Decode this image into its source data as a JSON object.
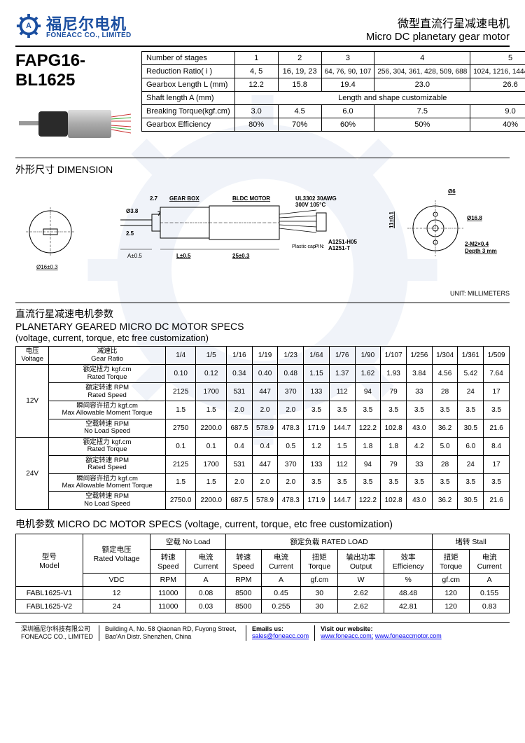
{
  "header": {
    "logo_cn": "福尼尔电机",
    "logo_en": "FONEACC CO., LIMITED",
    "title_cn": "微型直流行星减速电机",
    "title_en": "Micro DC planetary gear motor"
  },
  "model": "FAPG16-BL1625",
  "stages": {
    "headers": [
      "Number of stages",
      "Reduction Ratio( i )",
      "Gearbox Length L (mm)",
      "Shaft length A (mm)",
      "Breaking Torque(kgf.cm)",
      "Gearbox Efficiency"
    ],
    "cols": [
      "1",
      "2",
      "3",
      "4",
      "5"
    ],
    "rows": [
      [
        "4, 5",
        "16, 19, 23",
        "64, 76, 90, 107",
        "256, 304, 361, 428, 509, 688",
        "1024, 1216, 1444, 1715"
      ],
      [
        "12.2",
        "15.8",
        "19.4",
        "23.0",
        "26.6"
      ],
      [
        "Length and shape customizable"
      ],
      [
        "3.0",
        "4.5",
        "6.0",
        "7.5",
        "9.0"
      ],
      [
        "80%",
        "70%",
        "60%",
        "50%",
        "40%"
      ]
    ]
  },
  "dimension": {
    "title": "外形尺寸 DIMENSION",
    "labels": {
      "gearbox": "GEAR BOX",
      "bldc": "BLDC MOTOR",
      "wire": "UL3302 30AWG",
      "wire2": "300V 105°C",
      "pin1": "A1251-H05",
      "pin2": "A1251-T",
      "plastic": "Plastic cap",
      "d16": "Ø16±0.3",
      "a": "A±0.5",
      "l": "L±0.5",
      "l25": "25±0.3",
      "t27": "2.7",
      "t7": "7",
      "d38": "Ø3.8",
      "t258": "2.5",
      "d6": "Ø6",
      "d11": "11±0.1",
      "d168": "Ø16.8",
      "m2": "2-M2×0.4",
      "depth": "Depth 3 mm"
    },
    "unit": "UNIT: MILLIMETERS"
  },
  "planetary": {
    "title_cn": "直流行星减速电机参数",
    "title_en": "PLANETARY GEARED MICRO DC MOTOR SPECS",
    "sub": "(voltage, current, torque, etc free customization)",
    "voltage_h_cn": "电压",
    "voltage_h_en": "Voltage",
    "ratio_h_cn": "减速比",
    "ratio_h_en": "Gear Ratio",
    "ratios": [
      "1/4",
      "1/5",
      "1/16",
      "1/19",
      "1/23",
      "1/64",
      "1/76",
      "1/90",
      "1/107",
      "1/256",
      "1/304",
      "1/361",
      "1/509"
    ],
    "params": [
      {
        "cn": "额定扭力 kgf.cm",
        "en": "Rated Torque"
      },
      {
        "cn": "额定转速 RPM",
        "en": "Rated Speed"
      },
      {
        "cn": "瞬间容许扭力 kgf.cm",
        "en": "Max Allowable Moment Torque"
      },
      {
        "cn": "空载转速 RPM",
        "en": "No Load Speed"
      }
    ],
    "blocks": [
      {
        "v": "12V",
        "rows": [
          [
            "0.10",
            "0.12",
            "0.34",
            "0.40",
            "0.48",
            "1.15",
            "1.37",
            "1.62",
            "1.93",
            "3.84",
            "4.56",
            "5.42",
            "7.64"
          ],
          [
            "2125",
            "1700",
            "531",
            "447",
            "370",
            "133",
            "112",
            "94",
            "79",
            "33",
            "28",
            "24",
            "17"
          ],
          [
            "1.5",
            "1.5",
            "2.0",
            "2.0",
            "2.0",
            "3.5",
            "3.5",
            "3.5",
            "3.5",
            "3.5",
            "3.5",
            "3.5",
            "3.5"
          ],
          [
            "2750",
            "2200.0",
            "687.5",
            "578.9",
            "478.3",
            "171.9",
            "144.7",
            "122.2",
            "102.8",
            "43.0",
            "36.2",
            "30.5",
            "21.6"
          ]
        ]
      },
      {
        "v": "24V",
        "rows": [
          [
            "0.1",
            "0.1",
            "0.4",
            "0.4",
            "0.5",
            "1.2",
            "1.5",
            "1.8",
            "1.8",
            "4.2",
            "5.0",
            "6.0",
            "8.4"
          ],
          [
            "2125",
            "1700",
            "531",
            "447",
            "370",
            "133",
            "112",
            "94",
            "79",
            "33",
            "28",
            "24",
            "17"
          ],
          [
            "1.5",
            "1.5",
            "2.0",
            "2.0",
            "2.0",
            "3.5",
            "3.5",
            "3.5",
            "3.5",
            "3.5",
            "3.5",
            "3.5",
            "3.5"
          ],
          [
            "2750.0",
            "2200.0",
            "687.5",
            "578.9",
            "478.3",
            "171.9",
            "144.7",
            "122.2",
            "102.8",
            "43.0",
            "36.2",
            "30.5",
            "21.6"
          ]
        ]
      }
    ]
  },
  "motor": {
    "title": "电机参数 MICRO DC MOTOR SPECS (voltage, current, torque, etc free customization)",
    "h": {
      "model_cn": "型号",
      "model_en": "Model",
      "rv_cn": "额定电压",
      "rv_en": "Rated Voltage",
      "nl_cn": "空载 No Load",
      "rl_cn": "额定负载 RATED LOAD",
      "st_cn": "堵转 Stall",
      "speed_cn": "转速",
      "speed_en": "Speed",
      "cur_cn": "电流",
      "cur_en": "Current",
      "tq_cn": "扭矩",
      "tq_en": "Torque",
      "out_cn": "输出功率",
      "out_en": "Output",
      "eff_cn": "效率",
      "eff_en": "Efficiency",
      "vdc": "VDC",
      "rpm": "RPM",
      "a": "A",
      "gfcm": "gf.cm",
      "w": "W",
      "pct": "%"
    },
    "rows": [
      {
        "model": "FABL1625-V1",
        "v": "12",
        "nls": "11000",
        "nlc": "0.08",
        "rls": "8500",
        "rlc": "0.45",
        "rlt": "30",
        "rlo": "2.62",
        "rle": "48.48",
        "stt": "120",
        "stc": "0.155"
      },
      {
        "model": "FABL1625-V2",
        "v": "24",
        "nls": "11000",
        "nlc": "0.03",
        "rls": "8500",
        "rlc": "0.255",
        "rlt": "30",
        "rlo": "2.62",
        "rle": "42.81",
        "stt": "120",
        "stc": "0.83"
      }
    ]
  },
  "footer": {
    "co_cn": "深圳福尼尔科技有限公司",
    "co_en": "FONEACC CO., LIMITED",
    "addr": "Building A, No. 58 Qiaonan RD, Fuyong Street, Bao'An Distr. Shenzhen, China",
    "email_l": "Emails us:",
    "email": "sales@foneacc.com",
    "web_l": "Visit our website:",
    "web1": "www.foneacc.com;",
    "web2": "www.foneaccmotor.com"
  }
}
